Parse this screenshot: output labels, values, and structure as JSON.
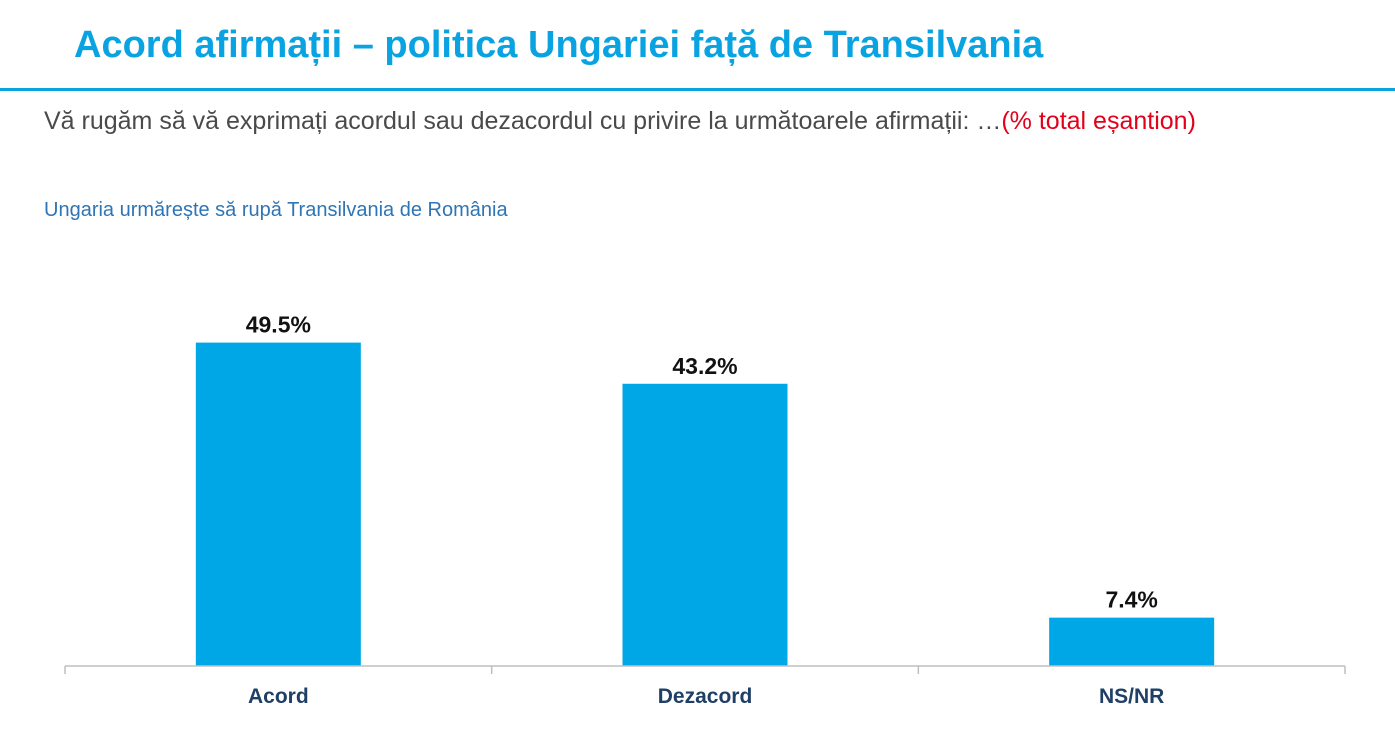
{
  "header": {
    "title": "Acord afirmații – politica Ungariei față de Transilvania",
    "question": "Vă rugăm să vă exprimați acordul sau dezacordul cu privire la următoarele afirmații: …",
    "question_note": "(% total eșantion)",
    "statement": "Ungaria urmărește să rupă Transilvania de România"
  },
  "colors": {
    "title": "#0aa3e2",
    "bar": "#00a7e6",
    "note": "#e3001b",
    "statement": "#2e75b6",
    "category": "#1f3f66"
  },
  "chart_data": {
    "type": "bar",
    "categories": [
      "Acord",
      "Dezacord",
      "NS/NR"
    ],
    "values": [
      49.5,
      43.2,
      7.4
    ],
    "value_labels": [
      "49.5%",
      "43.2%",
      "7.4%"
    ],
    "ylim": [
      0,
      60
    ],
    "grid": false,
    "legend": "none"
  }
}
